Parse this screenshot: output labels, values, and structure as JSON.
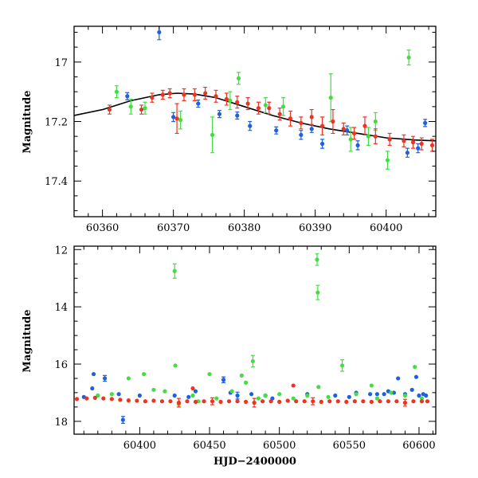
{
  "chart_data": [
    {
      "panel": "top",
      "type": "scatter",
      "title": "",
      "xlabel": "",
      "ylabel": "Magnitude",
      "xlim": [
        60356,
        60407
      ],
      "ylim": [
        17.52,
        16.88
      ],
      "y_inverted": true,
      "xticks": [
        60360,
        60370,
        60380,
        60390,
        60400
      ],
      "yticks": [
        17,
        17.2,
        17.4
      ],
      "grid": false,
      "legend": "none",
      "colors": {
        "blue": "#1f5fe0",
        "green": "#44dd44",
        "red": "#ee3322",
        "model": "#000000"
      },
      "model_curve": {
        "x": [
          60356,
          60360,
          60364,
          60368,
          60370.5,
          60373,
          60376,
          60380,
          60384,
          60388,
          60392,
          60396,
          60400,
          60404,
          60407
        ],
        "y": [
          17.18,
          17.16,
          17.13,
          17.11,
          17.105,
          17.108,
          17.12,
          17.15,
          17.18,
          17.205,
          17.225,
          17.24,
          17.255,
          17.262,
          17.265
        ]
      },
      "series": [
        {
          "color": "blue",
          "points": [
            {
              "x": 60363.5,
              "y": 17.115,
              "e": 0.012
            },
            {
              "x": 60368,
              "y": 16.9,
              "e": 0.025
            },
            {
              "x": 60370,
              "y": 17.185,
              "e": 0.015
            },
            {
              "x": 60373.5,
              "y": 17.14,
              "e": 0.012
            },
            {
              "x": 60376.5,
              "y": 17.175,
              "e": 0.012
            },
            {
              "x": 60379,
              "y": 17.18,
              "e": 0.012
            },
            {
              "x": 60380.8,
              "y": 17.215,
              "e": 0.015
            },
            {
              "x": 60384.5,
              "y": 17.23,
              "e": 0.012
            },
            {
              "x": 60388,
              "y": 17.245,
              "e": 0.015
            },
            {
              "x": 60389.5,
              "y": 17.225,
              "e": 0.012
            },
            {
              "x": 60391,
              "y": 17.275,
              "e": 0.015
            },
            {
              "x": 60394.5,
              "y": 17.23,
              "e": 0.015
            },
            {
              "x": 60396,
              "y": 17.28,
              "e": 0.015
            },
            {
              "x": 60403,
              "y": 17.305,
              "e": 0.015
            },
            {
              "x": 60404.5,
              "y": 17.29,
              "e": 0.015
            },
            {
              "x": 60405.5,
              "y": 17.205,
              "e": 0.012
            }
          ]
        },
        {
          "color": "green",
          "points": [
            {
              "x": 60362,
              "y": 17.1,
              "e": 0.02
            },
            {
              "x": 60364,
              "y": 17.15,
              "e": 0.025
            },
            {
              "x": 60366,
              "y": 17.155,
              "e": 0.02
            },
            {
              "x": 60371,
              "y": 17.195,
              "e": 0.03
            },
            {
              "x": 60375.5,
              "y": 17.245,
              "e": 0.06
            },
            {
              "x": 60378,
              "y": 17.13,
              "e": 0.03
            },
            {
              "x": 60379.2,
              "y": 17.055,
              "e": 0.02
            },
            {
              "x": 60383,
              "y": 17.145,
              "e": 0.025
            },
            {
              "x": 60385.5,
              "y": 17.15,
              "e": 0.03
            },
            {
              "x": 60392.2,
              "y": 17.12,
              "e": 0.08
            },
            {
              "x": 60395,
              "y": 17.26,
              "e": 0.04
            },
            {
              "x": 60397.5,
              "y": 17.25,
              "e": 0.03
            },
            {
              "x": 60398.5,
              "y": 17.2,
              "e": 0.03
            },
            {
              "x": 60400.2,
              "y": 17.33,
              "e": 0.03
            },
            {
              "x": 60403.2,
              "y": 16.985,
              "e": 0.025
            }
          ]
        },
        {
          "color": "red",
          "points": [
            {
              "x": 60361,
              "y": 17.16,
              "e": 0.015
            },
            {
              "x": 60365.5,
              "y": 17.16,
              "e": 0.015
            },
            {
              "x": 60367,
              "y": 17.12,
              "e": 0.015
            },
            {
              "x": 60368.5,
              "y": 17.11,
              "e": 0.015
            },
            {
              "x": 60369.5,
              "y": 17.105,
              "e": 0.015
            },
            {
              "x": 60370.5,
              "y": 17.19,
              "e": 0.05
            },
            {
              "x": 60371.5,
              "y": 17.11,
              "e": 0.02
            },
            {
              "x": 60373,
              "y": 17.11,
              "e": 0.02
            },
            {
              "x": 60374.5,
              "y": 17.105,
              "e": 0.02
            },
            {
              "x": 60376,
              "y": 17.115,
              "e": 0.02
            },
            {
              "x": 60377.5,
              "y": 17.125,
              "e": 0.02
            },
            {
              "x": 60379,
              "y": 17.135,
              "e": 0.02
            },
            {
              "x": 60380.5,
              "y": 17.14,
              "e": 0.02
            },
            {
              "x": 60382,
              "y": 17.155,
              "e": 0.02
            },
            {
              "x": 60383.5,
              "y": 17.155,
              "e": 0.02
            },
            {
              "x": 60385,
              "y": 17.175,
              "e": 0.02
            },
            {
              "x": 60386.5,
              "y": 17.19,
              "e": 0.025
            },
            {
              "x": 60388,
              "y": 17.205,
              "e": 0.02
            },
            {
              "x": 60389.5,
              "y": 17.185,
              "e": 0.025
            },
            {
              "x": 60391,
              "y": 17.215,
              "e": 0.03
            },
            {
              "x": 60392.5,
              "y": 17.2,
              "e": 0.04
            },
            {
              "x": 60394,
              "y": 17.225,
              "e": 0.02
            },
            {
              "x": 60395.5,
              "y": 17.24,
              "e": 0.02
            },
            {
              "x": 60397,
              "y": 17.215,
              "e": 0.03
            },
            {
              "x": 60398.5,
              "y": 17.25,
              "e": 0.025
            },
            {
              "x": 60400.5,
              "y": 17.26,
              "e": 0.02
            },
            {
              "x": 60402.5,
              "y": 17.265,
              "e": 0.02
            },
            {
              "x": 60403.8,
              "y": 17.27,
              "e": 0.02
            },
            {
              "x": 60405,
              "y": 17.275,
              "e": 0.02
            },
            {
              "x": 60406.5,
              "y": 17.28,
              "e": 0.02
            }
          ]
        }
      ]
    },
    {
      "panel": "bottom",
      "type": "scatter",
      "title": "",
      "xlabel": "HJD−2400000",
      "ylabel": "Magnitude",
      "xlim": [
        60353,
        60612
      ],
      "ylim": [
        18.45,
        11.88
      ],
      "y_inverted": true,
      "xticks": [
        60400,
        60450,
        60500,
        60550,
        60600
      ],
      "yticks": [
        12,
        14,
        16,
        18
      ],
      "grid": false,
      "legend": "none",
      "colors": {
        "blue": "#1f5fe0",
        "green": "#44dd44",
        "red": "#ee3322"
      },
      "series": [
        {
          "color": "blue",
          "points": [
            {
              "x": 60360,
              "y": 17.15
            },
            {
              "x": 60366,
              "y": 16.85
            },
            {
              "x": 60367,
              "y": 16.35
            },
            {
              "x": 60375,
              "y": 16.5,
              "e": 0.1
            },
            {
              "x": 60385,
              "y": 17.05
            },
            {
              "x": 60388,
              "y": 17.95,
              "e": 0.12
            },
            {
              "x": 60400,
              "y": 17.1
            },
            {
              "x": 60425,
              "y": 17.1
            },
            {
              "x": 60435,
              "y": 17.15
            },
            {
              "x": 60440,
              "y": 16.95
            },
            {
              "x": 60460,
              "y": 16.55,
              "e": 0.1
            },
            {
              "x": 60465,
              "y": 17.0
            },
            {
              "x": 60470,
              "y": 17.1,
              "e": 0.12
            },
            {
              "x": 60480,
              "y": 17.05
            },
            {
              "x": 60490,
              "y": 17.1
            },
            {
              "x": 60495,
              "y": 17.2
            },
            {
              "x": 60520,
              "y": 17.05
            },
            {
              "x": 60540,
              "y": 17.1
            },
            {
              "x": 60550,
              "y": 17.15
            },
            {
              "x": 60555,
              "y": 17.0
            },
            {
              "x": 60565,
              "y": 17.05
            },
            {
              "x": 60570,
              "y": 17.05
            },
            {
              "x": 60575,
              "y": 17.05
            },
            {
              "x": 60578,
              "y": 16.95
            },
            {
              "x": 60582,
              "y": 17.0
            },
            {
              "x": 60585,
              "y": 16.5
            },
            {
              "x": 60590,
              "y": 17.05
            },
            {
              "x": 60595,
              "y": 16.9
            },
            {
              "x": 60598,
              "y": 16.45
            },
            {
              "x": 60600,
              "y": 17.1
            },
            {
              "x": 60603,
              "y": 17.05
            },
            {
              "x": 60605,
              "y": 17.1
            }
          ]
        },
        {
          "color": "green",
          "points": [
            {
              "x": 60370,
              "y": 17.1
            },
            {
              "x": 60380,
              "y": 17.05
            },
            {
              "x": 60392,
              "y": 16.5
            },
            {
              "x": 60403,
              "y": 16.35
            },
            {
              "x": 60410,
              "y": 16.9
            },
            {
              "x": 60418,
              "y": 16.95
            },
            {
              "x": 60425,
              "y": 12.75,
              "e": 0.25
            },
            {
              "x": 60425.5,
              "y": 16.05
            },
            {
              "x": 60428,
              "y": 17.4
            },
            {
              "x": 60438,
              "y": 17.1
            },
            {
              "x": 60442,
              "y": 17.3
            },
            {
              "x": 60450,
              "y": 16.35
            },
            {
              "x": 60455,
              "y": 17.2
            },
            {
              "x": 60466,
              "y": 16.95
            },
            {
              "x": 60473,
              "y": 16.4
            },
            {
              "x": 60476,
              "y": 16.65
            },
            {
              "x": 60481,
              "y": 15.9,
              "e": 0.2
            },
            {
              "x": 60485,
              "y": 17.2
            },
            {
              "x": 60490,
              "y": 17.1
            },
            {
              "x": 60500,
              "y": 17.05
            },
            {
              "x": 60510,
              "y": 17.2
            },
            {
              "x": 60520,
              "y": 17.1
            },
            {
              "x": 60527,
              "y": 12.35,
              "e": 0.2
            },
            {
              "x": 60527.5,
              "y": 13.5,
              "e": 0.25
            },
            {
              "x": 60528,
              "y": 16.8
            },
            {
              "x": 60535,
              "y": 17.15
            },
            {
              "x": 60545,
              "y": 16.05,
              "e": 0.2
            },
            {
              "x": 60555,
              "y": 17.05
            },
            {
              "x": 60566,
              "y": 16.75
            },
            {
              "x": 60570,
              "y": 17.2
            },
            {
              "x": 60580,
              "y": 17.0
            },
            {
              "x": 60590,
              "y": 17.1
            },
            {
              "x": 60597,
              "y": 16.1
            },
            {
              "x": 60602,
              "y": 17.2
            }
          ]
        },
        {
          "color": "red",
          "points": [
            {
              "x": 60355,
              "y": 17.22
            },
            {
              "x": 60362,
              "y": 17.2
            },
            {
              "x": 60368,
              "y": 17.18
            },
            {
              "x": 60374,
              "y": 17.2
            },
            {
              "x": 60380,
              "y": 17.22
            },
            {
              "x": 60386,
              "y": 17.25
            },
            {
              "x": 60392,
              "y": 17.27
            },
            {
              "x": 60398,
              "y": 17.28
            },
            {
              "x": 60404,
              "y": 17.3
            },
            {
              "x": 60410,
              "y": 17.28
            },
            {
              "x": 60416,
              "y": 17.3
            },
            {
              "x": 60422,
              "y": 17.3
            },
            {
              "x": 60428,
              "y": 17.35,
              "e": 0.15
            },
            {
              "x": 60434,
              "y": 17.3
            },
            {
              "x": 60438,
              "y": 16.85
            },
            {
              "x": 60440,
              "y": 17.32
            },
            {
              "x": 60446,
              "y": 17.3
            },
            {
              "x": 60452,
              "y": 17.3,
              "e": 0.12
            },
            {
              "x": 60458,
              "y": 17.32
            },
            {
              "x": 60464,
              "y": 17.3
            },
            {
              "x": 60470,
              "y": 17.3
            },
            {
              "x": 60476,
              "y": 17.32
            },
            {
              "x": 60482,
              "y": 17.35,
              "e": 0.15
            },
            {
              "x": 60488,
              "y": 17.3
            },
            {
              "x": 60494,
              "y": 17.3
            },
            {
              "x": 60500,
              "y": 17.32
            },
            {
              "x": 60506,
              "y": 17.28
            },
            {
              "x": 60510,
              "y": 16.75
            },
            {
              "x": 60512,
              "y": 17.3
            },
            {
              "x": 60518,
              "y": 17.3
            },
            {
              "x": 60524,
              "y": 17.3,
              "e": 0.12
            },
            {
              "x": 60530,
              "y": 17.32
            },
            {
              "x": 60536,
              "y": 17.3
            },
            {
              "x": 60542,
              "y": 17.3
            },
            {
              "x": 60548,
              "y": 17.32
            },
            {
              "x": 60554,
              "y": 17.3
            },
            {
              "x": 60560,
              "y": 17.3
            },
            {
              "x": 60566,
              "y": 17.32
            },
            {
              "x": 60572,
              "y": 17.3
            },
            {
              "x": 60578,
              "y": 17.3
            },
            {
              "x": 60584,
              "y": 17.3
            },
            {
              "x": 60590,
              "y": 17.35,
              "e": 0.12
            },
            {
              "x": 60596,
              "y": 17.3
            },
            {
              "x": 60602,
              "y": 17.3
            },
            {
              "x": 60606,
              "y": 17.3
            }
          ]
        }
      ]
    }
  ]
}
